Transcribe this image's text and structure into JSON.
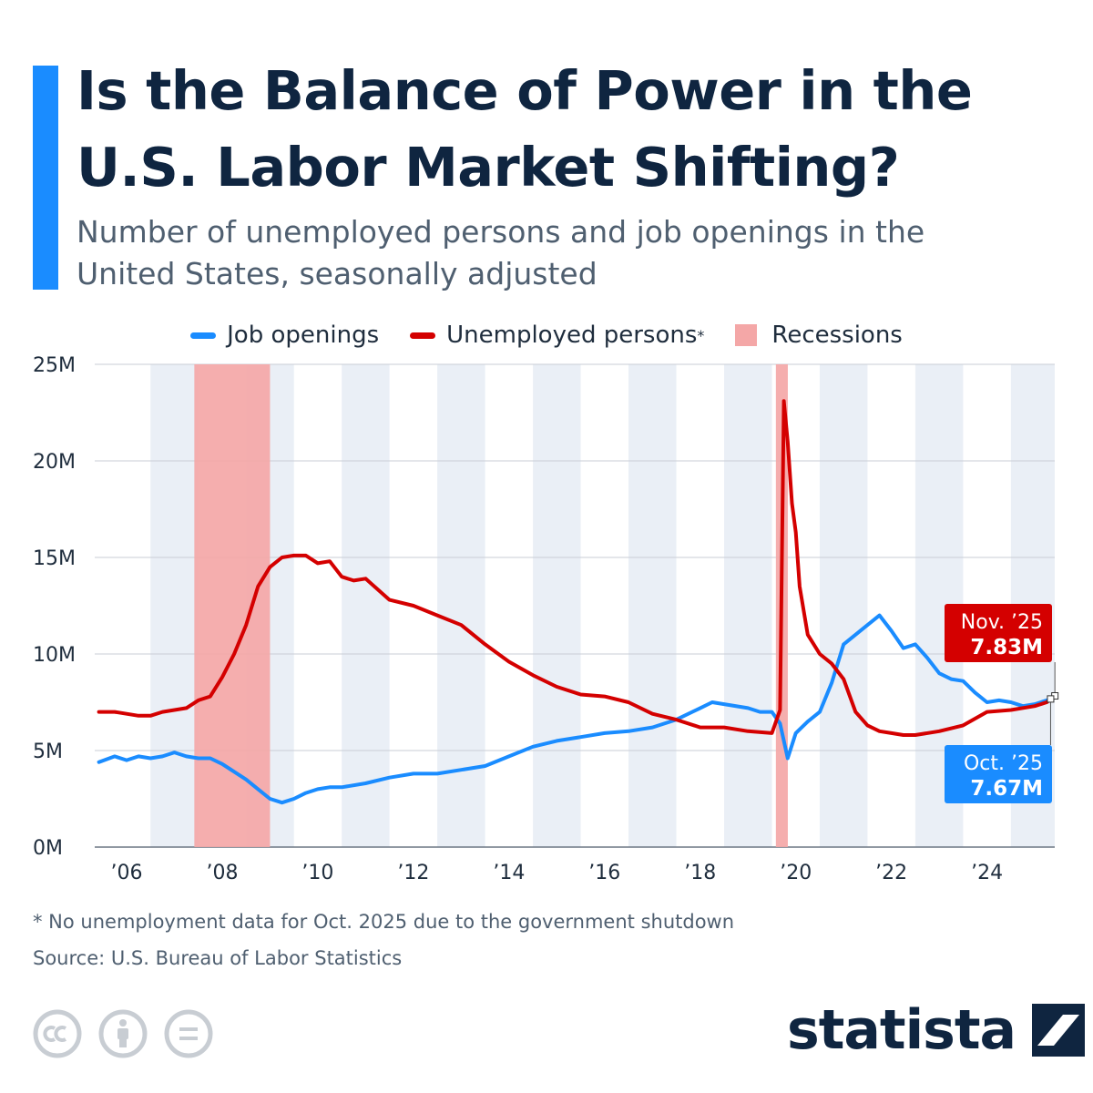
{
  "header": {
    "title": "Is the Balance of Power in the U.S. Labor Market Shifting?",
    "subtitle": "Number of unemployed persons and job openings in the United States, seasonally adjusted"
  },
  "colors": {
    "accent": "#1a8cff",
    "job_openings": "#1a8cff",
    "unemployed": "#d40000",
    "recession": "#f4a7a7",
    "band": "#eaeff6",
    "grid": "#c9ced6",
    "title": "#0f2540"
  },
  "legend": {
    "job_openings": "Job openings",
    "unemployed": "Unemployed persons",
    "unemployed_marker": "*",
    "recessions": "Recessions"
  },
  "chart_data": {
    "type": "line",
    "title": "Is the Balance of Power in the U.S. Labor Market Shifting?",
    "xlabel": "",
    "ylabel": "",
    "x_range": [
      2005.833,
      2025.917
    ],
    "ylim": [
      0,
      25
    ],
    "y_ticks": [
      0,
      5,
      10,
      15,
      20,
      25
    ],
    "y_tick_labels": [
      "0M",
      "5M",
      "10M",
      "15M",
      "20M",
      "25M"
    ],
    "x_ticks": [
      2006,
      2008,
      2010,
      2012,
      2014,
      2016,
      2018,
      2020,
      2022,
      2024
    ],
    "x_tick_labels": [
      "’06",
      "’08",
      "’10",
      "’12",
      "’14",
      "’16",
      "’18",
      "’20",
      "’22",
      "’24"
    ],
    "alternating_year_bands": [
      2007,
      2009,
      2011,
      2013,
      2015,
      2017,
      2019,
      2021,
      2023,
      2025
    ],
    "recessions": [
      {
        "start": 2007.917,
        "end": 2009.5
      },
      {
        "start": 2020.083,
        "end": 2020.333
      }
    ],
    "series": [
      {
        "name": "Job openings",
        "unit": "millions",
        "points": [
          [
            2005.92,
            4.4
          ],
          [
            2006.25,
            4.7
          ],
          [
            2006.5,
            4.5
          ],
          [
            2006.75,
            4.7
          ],
          [
            2007.0,
            4.6
          ],
          [
            2007.25,
            4.7
          ],
          [
            2007.5,
            4.9
          ],
          [
            2007.75,
            4.7
          ],
          [
            2008.0,
            4.6
          ],
          [
            2008.25,
            4.6
          ],
          [
            2008.5,
            4.3
          ],
          [
            2008.75,
            3.9
          ],
          [
            2009.0,
            3.5
          ],
          [
            2009.25,
            3.0
          ],
          [
            2009.5,
            2.5
          ],
          [
            2009.75,
            2.3
          ],
          [
            2010.0,
            2.5
          ],
          [
            2010.25,
            2.8
          ],
          [
            2010.5,
            3.0
          ],
          [
            2010.75,
            3.1
          ],
          [
            2011.0,
            3.1
          ],
          [
            2011.5,
            3.3
          ],
          [
            2012.0,
            3.6
          ],
          [
            2012.5,
            3.8
          ],
          [
            2013.0,
            3.8
          ],
          [
            2013.5,
            4.0
          ],
          [
            2014.0,
            4.2
          ],
          [
            2014.5,
            4.7
          ],
          [
            2015.0,
            5.2
          ],
          [
            2015.5,
            5.5
          ],
          [
            2016.0,
            5.7
          ],
          [
            2016.5,
            5.9
          ],
          [
            2017.0,
            6.0
          ],
          [
            2017.5,
            6.2
          ],
          [
            2018.0,
            6.6
          ],
          [
            2018.5,
            7.2
          ],
          [
            2018.75,
            7.5
          ],
          [
            2019.0,
            7.4
          ],
          [
            2019.5,
            7.2
          ],
          [
            2019.75,
            7.0
          ],
          [
            2020.0,
            7.0
          ],
          [
            2020.17,
            6.4
          ],
          [
            2020.33,
            4.6
          ],
          [
            2020.5,
            5.9
          ],
          [
            2020.75,
            6.5
          ],
          [
            2021.0,
            7.0
          ],
          [
            2021.25,
            8.5
          ],
          [
            2021.5,
            10.5
          ],
          [
            2021.75,
            11.0
          ],
          [
            2022.0,
            11.5
          ],
          [
            2022.25,
            12.0
          ],
          [
            2022.5,
            11.2
          ],
          [
            2022.75,
            10.3
          ],
          [
            2023.0,
            10.5
          ],
          [
            2023.25,
            9.8
          ],
          [
            2023.5,
            9.0
          ],
          [
            2023.75,
            8.7
          ],
          [
            2024.0,
            8.6
          ],
          [
            2024.25,
            8.0
          ],
          [
            2024.5,
            7.5
          ],
          [
            2024.75,
            7.6
          ],
          [
            2025.0,
            7.5
          ],
          [
            2025.25,
            7.3
          ],
          [
            2025.5,
            7.4
          ],
          [
            2025.75,
            7.6
          ],
          [
            2025.83,
            7.67
          ]
        ]
      },
      {
        "name": "Unemployed persons",
        "unit": "millions",
        "points": [
          [
            2005.92,
            7.0
          ],
          [
            2006.25,
            7.0
          ],
          [
            2006.5,
            6.9
          ],
          [
            2006.75,
            6.8
          ],
          [
            2007.0,
            6.8
          ],
          [
            2007.25,
            7.0
          ],
          [
            2007.5,
            7.1
          ],
          [
            2007.75,
            7.2
          ],
          [
            2008.0,
            7.6
          ],
          [
            2008.25,
            7.8
          ],
          [
            2008.5,
            8.8
          ],
          [
            2008.75,
            10.0
          ],
          [
            2009.0,
            11.5
          ],
          [
            2009.25,
            13.5
          ],
          [
            2009.5,
            14.5
          ],
          [
            2009.75,
            15.0
          ],
          [
            2010.0,
            15.1
          ],
          [
            2010.25,
            15.1
          ],
          [
            2010.5,
            14.7
          ],
          [
            2010.75,
            14.8
          ],
          [
            2011.0,
            14.0
          ],
          [
            2011.25,
            13.8
          ],
          [
            2011.5,
            13.9
          ],
          [
            2012.0,
            12.8
          ],
          [
            2012.5,
            12.5
          ],
          [
            2013.0,
            12.0
          ],
          [
            2013.5,
            11.5
          ],
          [
            2014.0,
            10.5
          ],
          [
            2014.5,
            9.6
          ],
          [
            2015.0,
            8.9
          ],
          [
            2015.5,
            8.3
          ],
          [
            2016.0,
            7.9
          ],
          [
            2016.5,
            7.8
          ],
          [
            2017.0,
            7.5
          ],
          [
            2017.5,
            6.9
          ],
          [
            2018.0,
            6.6
          ],
          [
            2018.5,
            6.2
          ],
          [
            2019.0,
            6.2
          ],
          [
            2019.5,
            6.0
          ],
          [
            2020.0,
            5.9
          ],
          [
            2020.17,
            7.1
          ],
          [
            2020.25,
            23.1
          ],
          [
            2020.33,
            21.0
          ],
          [
            2020.42,
            17.8
          ],
          [
            2020.5,
            16.3
          ],
          [
            2020.58,
            13.5
          ],
          [
            2020.75,
            11.0
          ],
          [
            2021.0,
            10.0
          ],
          [
            2021.25,
            9.5
          ],
          [
            2021.5,
            8.7
          ],
          [
            2021.75,
            7.0
          ],
          [
            2022.0,
            6.3
          ],
          [
            2022.25,
            6.0
          ],
          [
            2022.5,
            5.9
          ],
          [
            2022.75,
            5.8
          ],
          [
            2023.0,
            5.8
          ],
          [
            2023.5,
            6.0
          ],
          [
            2024.0,
            6.3
          ],
          [
            2024.5,
            7.0
          ],
          [
            2025.0,
            7.1
          ],
          [
            2025.5,
            7.3
          ],
          [
            2025.75,
            7.5
          ],
          [
            2025.92,
            7.83
          ]
        ]
      }
    ],
    "annotations": [
      {
        "series": "Unemployed persons",
        "label": "Nov. ’25",
        "value_label": "7.83M",
        "x": 2025.92,
        "y": 7.83
      },
      {
        "series": "Job openings",
        "label": "Oct. ’25",
        "value_label": "7.67M",
        "x": 2025.83,
        "y": 7.67
      }
    ]
  },
  "footer": {
    "footnote": "* No unemployment data for Oct. 2025 due to the government shutdown",
    "source": "Source: U.S. Bureau of Labor Statistics",
    "brand": "statista"
  }
}
